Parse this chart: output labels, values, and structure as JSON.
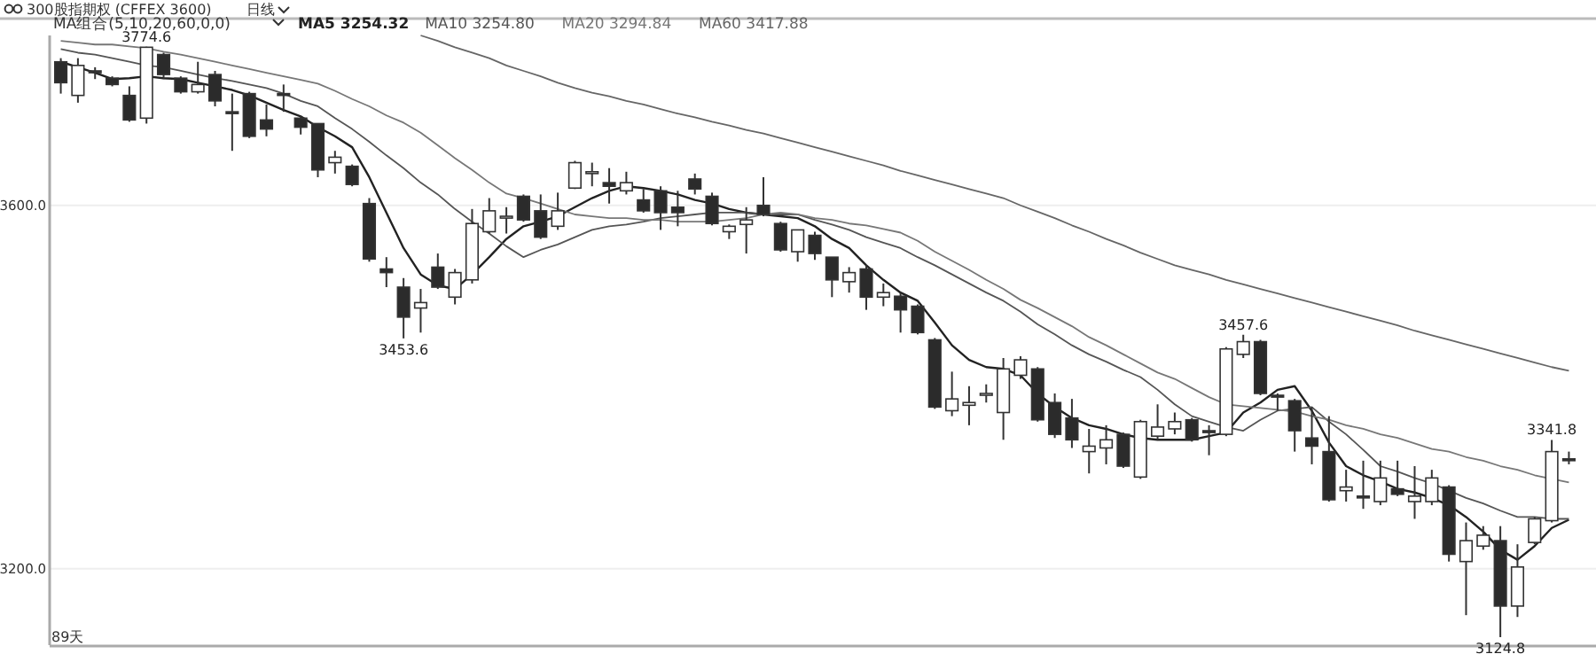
{
  "chart_data": {
    "type": "candlestick",
    "title": "300股指期权 (CFFEX 3600)",
    "subtitle": "日线",
    "tick_labels": "y",
    "grid": "y",
    "legend": "top left",
    "ylim": [
      3116,
      3787
    ],
    "yticks": [
      {
        "value": 3200,
        "label": "3200.0"
      },
      {
        "value": 3600,
        "label": "3600.0"
      }
    ],
    "annotations": [
      "MA组合(5,10,20,60,0,0)",
      "89天",
      {
        "text": "3774.6",
        "y": 3774.6
      },
      {
        "text": "3453.6",
        "y": 3453.6
      },
      {
        "text": "3457.6",
        "y": 3457.6
      },
      {
        "text": "3124.8",
        "y": 3124.8
      },
      {
        "text": "3341.8",
        "y": 3341.8
      }
    ],
    "categories": [
      null,
      null,
      null,
      null,
      null,
      null,
      null,
      null,
      null,
      null,
      null,
      null,
      null,
      null,
      null,
      null,
      null,
      null,
      null,
      null,
      null,
      null,
      null,
      null,
      null,
      null,
      null,
      null,
      null,
      null,
      null,
      null,
      null,
      null,
      null,
      null,
      null,
      null,
      null,
      null,
      null,
      null,
      null,
      null,
      null,
      null,
      null,
      null,
      null,
      null,
      null,
      null,
      null,
      null,
      null,
      null,
      null,
      null,
      null,
      null,
      null,
      null,
      null,
      null,
      null,
      null,
      null,
      null,
      null,
      null,
      null,
      null,
      null,
      null,
      null,
      null,
      null,
      null,
      null,
      null,
      null,
      null,
      null,
      null,
      null,
      null,
      null,
      null,
      null
    ],
    "ohlc": [
      [
        3758,
        3762,
        3723,
        3735
      ],
      [
        3721,
        3762,
        3713,
        3754
      ],
      [
        3748,
        3752,
        3739,
        3746
      ],
      [
        3740,
        3742,
        3731,
        3733
      ],
      [
        3721,
        3731,
        3692,
        3694
      ],
      [
        3696,
        3774.6,
        3690,
        3774
      ],
      [
        3766,
        3768,
        3739,
        3744
      ],
      [
        3740,
        3742,
        3723,
        3725
      ],
      [
        3725,
        3758,
        3723,
        3733
      ],
      [
        3744,
        3748,
        3709,
        3715
      ],
      [
        3703,
        3723,
        3660,
        3702
      ],
      [
        3723,
        3725,
        3674,
        3676
      ],
      [
        3694,
        3711,
        3676,
        3684
      ],
      [
        3723,
        3733,
        3703,
        3721
      ],
      [
        3696,
        3698,
        3678,
        3686
      ],
      [
        3690,
        3690,
        3631,
        3639
      ],
      [
        3647,
        3660,
        3635,
        3653
      ],
      [
        3643,
        3645,
        3621,
        3623
      ],
      [
        3602,
        3608,
        3538,
        3541
      ],
      [
        3530,
        3543,
        3510,
        3526
      ],
      [
        3510,
        3520,
        3453.6,
        3477
      ],
      [
        3487,
        3508,
        3460,
        3493
      ],
      [
        3532,
        3547,
        3508,
        3510
      ],
      [
        3499,
        3530,
        3491,
        3526
      ],
      [
        3518,
        3596,
        3514,
        3580
      ],
      [
        3571,
        3608,
        3569,
        3594
      ],
      [
        3586,
        3598,
        3569,
        3588
      ],
      [
        3610,
        3612,
        3582,
        3584
      ],
      [
        3594,
        3612,
        3563,
        3565
      ],
      [
        3577,
        3614,
        3573,
        3594
      ],
      [
        3619,
        3649,
        3618,
        3647
      ],
      [
        3635,
        3647,
        3621,
        3637
      ],
      [
        3625,
        3641,
        3602,
        3621
      ],
      [
        3616,
        3637,
        3612,
        3625
      ],
      [
        3606,
        3618,
        3592,
        3594
      ],
      [
        3616,
        3621,
        3573,
        3592
      ],
      [
        3598,
        3616,
        3577,
        3592
      ],
      [
        3629,
        3635,
        3612,
        3618
      ],
      [
        3610,
        3614,
        3578,
        3580
      ],
      [
        3571,
        3579,
        3563,
        3577
      ],
      [
        3579,
        3598,
        3547,
        3584
      ],
      [
        3600,
        3631,
        3588,
        3590
      ],
      [
        3580,
        3582,
        3549,
        3551
      ],
      [
        3549,
        3573,
        3538,
        3573
      ],
      [
        3567,
        3571,
        3540,
        3547
      ],
      [
        3543,
        3543,
        3499,
        3518
      ],
      [
        3516,
        3532,
        3504,
        3526
      ],
      [
        3530,
        3534,
        3485,
        3499
      ],
      [
        3499,
        3514,
        3489,
        3504
      ],
      [
        3500,
        3504,
        3460,
        3485
      ],
      [
        3489,
        3491,
        3458,
        3460
      ],
      [
        3452,
        3454,
        3376,
        3378
      ],
      [
        3374,
        3417,
        3368,
        3387
      ],
      [
        3380,
        3401,
        3358,
        3383
      ],
      [
        3391,
        3403,
        3383,
        3393
      ],
      [
        3372,
        3432,
        3342,
        3420
      ],
      [
        3413,
        3434,
        3409,
        3430
      ],
      [
        3420,
        3422,
        3362,
        3364
      ],
      [
        3383,
        3393,
        3344,
        3348
      ],
      [
        3366,
        3387,
        3333,
        3342
      ],
      [
        3329,
        3354,
        3305,
        3335
      ],
      [
        3333,
        3358,
        3315,
        3342
      ],
      [
        3348,
        3350,
        3311,
        3313
      ],
      [
        3301,
        3364,
        3299,
        3362
      ],
      [
        3346,
        3381,
        3342,
        3356
      ],
      [
        3354,
        3372,
        3348,
        3362
      ],
      [
        3364,
        3366,
        3340,
        3342
      ],
      [
        3352,
        3358,
        3325,
        3350
      ],
      [
        3348,
        3444,
        3346,
        3442
      ],
      [
        3436,
        3457.6,
        3432,
        3450
      ],
      [
        3450,
        3452,
        3391,
        3393
      ],
      [
        3391,
        3393,
        3374,
        3389
      ],
      [
        3385,
        3387,
        3329,
        3352
      ],
      [
        3344,
        3378,
        3315,
        3335
      ],
      [
        3329,
        3368,
        3274,
        3276
      ],
      [
        3286,
        3309,
        3274,
        3290
      ],
      [
        3280,
        3319,
        3266,
        3279
      ],
      [
        3274,
        3319,
        3270,
        3300
      ],
      [
        3288,
        3319,
        3280,
        3282
      ],
      [
        3274,
        3313,
        3255,
        3280
      ],
      [
        3274,
        3309,
        3270,
        3300
      ],
      [
        3290,
        3292,
        3208,
        3216
      ],
      [
        3208,
        3251,
        3149,
        3231
      ],
      [
        3225,
        3247,
        3221,
        3237
      ],
      [
        3231,
        3247,
        3124.8,
        3159
      ],
      [
        3159,
        3227,
        3147,
        3202
      ],
      [
        3229,
        3257,
        3227,
        3255
      ],
      [
        3253,
        3341.8,
        3251,
        3329
      ],
      [
        3321,
        3329,
        3315,
        3320
      ]
    ],
    "series": [
      {
        "name": "MA5 3254.32",
        "type": "line",
        "color": "#222222",
        "values": [
          3758,
          3752,
          3746,
          3739,
          3740,
          3742,
          3740,
          3739,
          3735,
          3731,
          3727,
          3721,
          3713,
          3705,
          3698,
          3686,
          3676,
          3664,
          3631,
          3592,
          3553,
          3524,
          3512,
          3508,
          3524,
          3543,
          3563,
          3577,
          3582,
          3588,
          3598,
          3608,
          3616,
          3621,
          3619,
          3616,
          3612,
          3606,
          3602,
          3596,
          3592,
          3590,
          3588,
          3586,
          3577,
          3563,
          3553,
          3534,
          3518,
          3504,
          3495,
          3471,
          3446,
          3430,
          3422,
          3420,
          3413,
          3393,
          3378,
          3366,
          3358,
          3354,
          3348,
          3344,
          3342,
          3342,
          3342,
          3346,
          3350,
          3372,
          3383,
          3397,
          3401,
          3374,
          3339,
          3313,
          3303,
          3296,
          3288,
          3284,
          3278,
          3270,
          3257,
          3241,
          3221,
          3210,
          3225,
          3245,
          3254
        ]
      },
      {
        "name": "MA10 3254.80",
        "type": "line",
        "color": "#555555",
        "values": [
          3772,
          3768,
          3766,
          3762,
          3758,
          3754,
          3752,
          3748,
          3744,
          3740,
          3737,
          3733,
          3729,
          3723,
          3715,
          3709,
          3696,
          3684,
          3670,
          3655,
          3641,
          3625,
          3612,
          3596,
          3582,
          3569,
          3555,
          3543,
          3551,
          3557,
          3565,
          3573,
          3577,
          3579,
          3582,
          3586,
          3588,
          3590,
          3592,
          3592,
          3592,
          3590,
          3590,
          3590,
          3584,
          3579,
          3573,
          3565,
          3559,
          3553,
          3543,
          3534,
          3524,
          3514,
          3504,
          3495,
          3483,
          3469,
          3458,
          3446,
          3436,
          3428,
          3419,
          3411,
          3397,
          3381,
          3368,
          3362,
          3356,
          3352,
          3364,
          3374,
          3376,
          3378,
          3362,
          3348,
          3331,
          3313,
          3307,
          3300,
          3294,
          3286,
          3278,
          3272,
          3264,
          3257,
          3257,
          3255,
          3255
        ]
      },
      {
        "name": "MA20 3294.84",
        "type": "line",
        "color": "#777777",
        "values": [
          3781,
          3779,
          3777,
          3777,
          3775,
          3773,
          3769,
          3766,
          3762,
          3758,
          3754,
          3750,
          3746,
          3742,
          3738,
          3734,
          3726,
          3717,
          3709,
          3699,
          3691,
          3680,
          3666,
          3652,
          3639,
          3625,
          3613,
          3608,
          3602,
          3596,
          3590,
          3588,
          3586,
          3586,
          3584,
          3584,
          3582,
          3582,
          3582,
          3584,
          3586,
          3590,
          3592,
          3590,
          3586,
          3584,
          3580,
          3578,
          3574,
          3570,
          3561,
          3549,
          3539,
          3529,
          3518,
          3508,
          3496,
          3487,
          3477,
          3467,
          3455,
          3446,
          3436,
          3426,
          3416,
          3409,
          3399,
          3389,
          3381,
          3379,
          3377,
          3375,
          3373,
          3368,
          3364,
          3358,
          3354,
          3348,
          3344,
          3338,
          3332,
          3329,
          3323,
          3319,
          3313,
          3309,
          3303,
          3299,
          3295
        ]
      },
      {
        "name": "MA60 3417.88",
        "type": "line",
        "color": "#666666",
        "values": [
          null,
          null,
          null,
          null,
          null,
          null,
          null,
          null,
          null,
          null,
          null,
          null,
          null,
          null,
          null,
          null,
          null,
          null,
          null,
          null,
          null,
          3787,
          3781,
          3774,
          3768,
          3762,
          3754,
          3748,
          3742,
          3735,
          3729,
          3724,
          3720,
          3715,
          3711,
          3706,
          3701,
          3697,
          3692,
          3688,
          3683,
          3679,
          3674,
          3669,
          3664,
          3659,
          3654,
          3649,
          3644,
          3638,
          3633,
          3628,
          3623,
          3618,
          3613,
          3608,
          3600,
          3593,
          3586,
          3578,
          3571,
          3563,
          3556,
          3548,
          3541,
          3534,
          3529,
          3524,
          3518,
          3513,
          3508,
          3503,
          3498,
          3493,
          3488,
          3483,
          3478,
          3473,
          3468,
          3462,
          3457,
          3452,
          3447,
          3442,
          3437,
          3432,
          3427,
          3422,
          3418
        ]
      }
    ]
  }
}
